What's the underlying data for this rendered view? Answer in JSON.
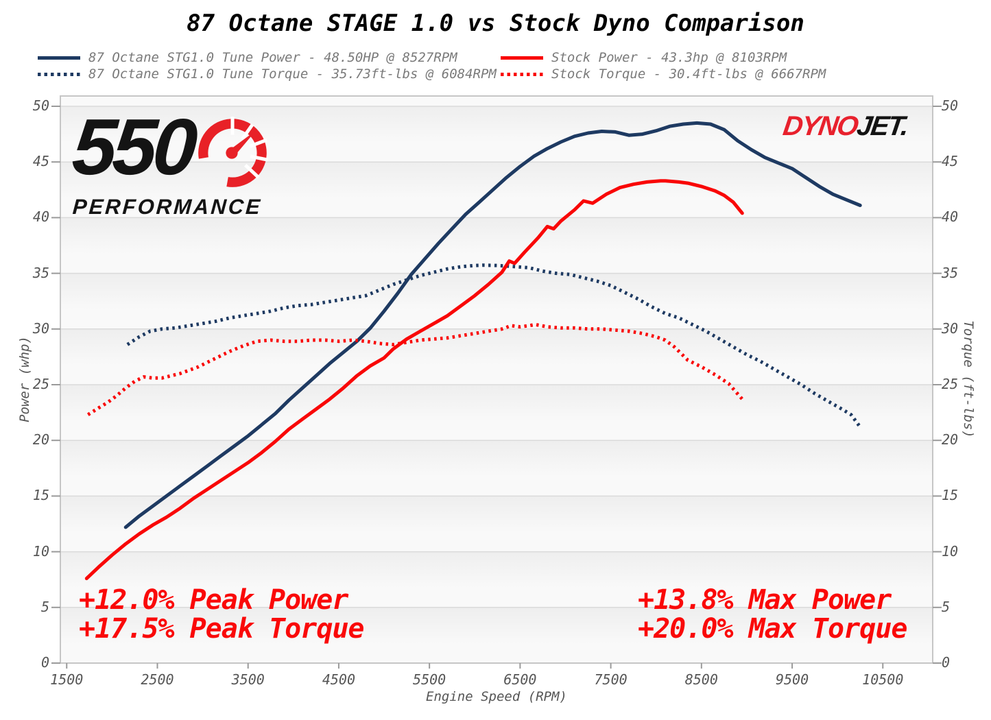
{
  "title": "87 Octane STAGE 1.0 vs Stock Dyno Comparison",
  "logos": {
    "brand_number": "550",
    "brand_name": "PERFORMANCE",
    "gauge_icon_color": "#e82127",
    "dynojet_red": "DYNO",
    "dynojet_black": "JET",
    "dynojet_dot": "."
  },
  "annotations": {
    "color": "#fa0909",
    "left_line1": "+12.0% Peak Power",
    "left_line2": "+17.5% Peak Torque",
    "right_line1": "+13.8% Max Power",
    "right_line2": "+20.0% Max Torque"
  },
  "chart_data": {
    "type": "line",
    "title": "87 Octane STAGE 1.0 vs Stock Dyno Comparison",
    "xlabel": "Engine Speed (RPM)",
    "ylabel_left": "Power (whp)",
    "ylabel_right": "Torque (ft-lbs)",
    "x_ticks": [
      1500,
      2500,
      3500,
      4500,
      5500,
      6500,
      7500,
      8500,
      9500,
      10500
    ],
    "y_ticks": [
      0,
      5,
      10,
      15,
      20,
      25,
      30,
      35,
      40,
      45,
      50
    ],
    "xlim": [
      1430,
      11050
    ],
    "ylim": [
      0,
      50.9
    ],
    "grid": "horizontal-only",
    "legend_position": "top",
    "series": [
      {
        "name": "tune_power",
        "label": "87 Octane STG1.0 Tune Power - 48.50HP @ 8527RPM",
        "color": "#1e3a62",
        "style": "solid",
        "unit": "whp",
        "peak": "48.50HP @ 8527RPM",
        "points": [
          [
            2150,
            12.2
          ],
          [
            2300,
            13.2
          ],
          [
            2450,
            14.1
          ],
          [
            2600,
            15.0
          ],
          [
            2750,
            15.9
          ],
          [
            2900,
            16.8
          ],
          [
            3050,
            17.7
          ],
          [
            3200,
            18.6
          ],
          [
            3350,
            19.5
          ],
          [
            3500,
            20.4
          ],
          [
            3650,
            21.4
          ],
          [
            3800,
            22.4
          ],
          [
            3950,
            23.6
          ],
          [
            4100,
            24.7
          ],
          [
            4250,
            25.8
          ],
          [
            4400,
            26.9
          ],
          [
            4550,
            27.9
          ],
          [
            4700,
            28.9
          ],
          [
            4850,
            30.1
          ],
          [
            5000,
            31.6
          ],
          [
            5150,
            33.2
          ],
          [
            5300,
            34.9
          ],
          [
            5450,
            36.3
          ],
          [
            5600,
            37.7
          ],
          [
            5750,
            39.0
          ],
          [
            5900,
            40.3
          ],
          [
            6050,
            41.4
          ],
          [
            6200,
            42.5
          ],
          [
            6350,
            43.6
          ],
          [
            6500,
            44.6
          ],
          [
            6650,
            45.5
          ],
          [
            6800,
            46.2
          ],
          [
            6950,
            46.8
          ],
          [
            7100,
            47.3
          ],
          [
            7250,
            47.6
          ],
          [
            7400,
            47.75
          ],
          [
            7550,
            47.7
          ],
          [
            7700,
            47.4
          ],
          [
            7850,
            47.5
          ],
          [
            8000,
            47.8
          ],
          [
            8150,
            48.2
          ],
          [
            8300,
            48.4
          ],
          [
            8450,
            48.5
          ],
          [
            8600,
            48.4
          ],
          [
            8750,
            47.9
          ],
          [
            8900,
            46.9
          ],
          [
            9050,
            46.1
          ],
          [
            9200,
            45.4
          ],
          [
            9350,
            44.9
          ],
          [
            9500,
            44.4
          ],
          [
            9650,
            43.6
          ],
          [
            9800,
            42.8
          ],
          [
            9950,
            42.1
          ],
          [
            10100,
            41.6
          ],
          [
            10250,
            41.1
          ]
        ]
      },
      {
        "name": "tune_torque",
        "label": "87 Octane STG1.0 Tune Torque - 35.73ft-lbs @ 6084RPM",
        "color": "#1e3a62",
        "style": "dotted",
        "unit": "ft-lbs",
        "peak": "35.73ft-lbs @ 6084RPM",
        "points": [
          [
            2170,
            28.6
          ],
          [
            2300,
            29.3
          ],
          [
            2420,
            29.8
          ],
          [
            2550,
            30.0
          ],
          [
            2700,
            30.1
          ],
          [
            2850,
            30.3
          ],
          [
            3000,
            30.5
          ],
          [
            3150,
            30.7
          ],
          [
            3300,
            31.0
          ],
          [
            3450,
            31.2
          ],
          [
            3600,
            31.4
          ],
          [
            3750,
            31.6
          ],
          [
            3900,
            31.9
          ],
          [
            4050,
            32.1
          ],
          [
            4200,
            32.2
          ],
          [
            4350,
            32.4
          ],
          [
            4500,
            32.6
          ],
          [
            4650,
            32.8
          ],
          [
            4800,
            33.0
          ],
          [
            4950,
            33.5
          ],
          [
            5100,
            34.0
          ],
          [
            5250,
            34.4
          ],
          [
            5400,
            34.8
          ],
          [
            5550,
            35.1
          ],
          [
            5700,
            35.4
          ],
          [
            5850,
            35.6
          ],
          [
            6000,
            35.7
          ],
          [
            6084,
            35.73
          ],
          [
            6250,
            35.7
          ],
          [
            6450,
            35.6
          ],
          [
            6600,
            35.5
          ],
          [
            6750,
            35.2
          ],
          [
            6900,
            35.0
          ],
          [
            7050,
            34.9
          ],
          [
            7200,
            34.6
          ],
          [
            7350,
            34.3
          ],
          [
            7500,
            33.9
          ],
          [
            7650,
            33.3
          ],
          [
            7800,
            32.7
          ],
          [
            7950,
            32.0
          ],
          [
            8100,
            31.4
          ],
          [
            8250,
            31.0
          ],
          [
            8400,
            30.4
          ],
          [
            8550,
            29.8
          ],
          [
            8700,
            29.1
          ],
          [
            8850,
            28.4
          ],
          [
            9000,
            27.7
          ],
          [
            9150,
            27.1
          ],
          [
            9300,
            26.4
          ],
          [
            9450,
            25.7
          ],
          [
            9600,
            25.0
          ],
          [
            9750,
            24.2
          ],
          [
            9900,
            23.5
          ],
          [
            10050,
            22.8
          ],
          [
            10150,
            22.3
          ],
          [
            10250,
            21.2
          ]
        ]
      },
      {
        "name": "stock_power",
        "label": "Stock Power - 43.3hp @ 8103RPM",
        "color": "#f90606",
        "style": "solid",
        "unit": "hp",
        "peak": "43.3hp @ 8103RPM",
        "points": [
          [
            1720,
            7.6
          ],
          [
            1850,
            8.6
          ],
          [
            2000,
            9.7
          ],
          [
            2150,
            10.7
          ],
          [
            2300,
            11.6
          ],
          [
            2450,
            12.4
          ],
          [
            2600,
            13.1
          ],
          [
            2750,
            13.9
          ],
          [
            2900,
            14.8
          ],
          [
            3050,
            15.6
          ],
          [
            3200,
            16.4
          ],
          [
            3350,
            17.2
          ],
          [
            3500,
            18.0
          ],
          [
            3650,
            18.9
          ],
          [
            3800,
            19.9
          ],
          [
            3950,
            21.0
          ],
          [
            4100,
            21.9
          ],
          [
            4250,
            22.8
          ],
          [
            4400,
            23.7
          ],
          [
            4550,
            24.7
          ],
          [
            4700,
            25.8
          ],
          [
            4850,
            26.7
          ],
          [
            5000,
            27.4
          ],
          [
            5100,
            28.2
          ],
          [
            5250,
            29.1
          ],
          [
            5400,
            29.8
          ],
          [
            5550,
            30.5
          ],
          [
            5700,
            31.2
          ],
          [
            5850,
            32.1
          ],
          [
            6000,
            33.0
          ],
          [
            6150,
            34.0
          ],
          [
            6300,
            35.1
          ],
          [
            6380,
            36.1
          ],
          [
            6440,
            35.9
          ],
          [
            6550,
            36.9
          ],
          [
            6700,
            38.2
          ],
          [
            6800,
            39.2
          ],
          [
            6870,
            39.0
          ],
          [
            6950,
            39.7
          ],
          [
            7100,
            40.7
          ],
          [
            7200,
            41.5
          ],
          [
            7300,
            41.3
          ],
          [
            7450,
            42.1
          ],
          [
            7600,
            42.7
          ],
          [
            7750,
            43.0
          ],
          [
            7900,
            43.2
          ],
          [
            8050,
            43.3
          ],
          [
            8103,
            43.3
          ],
          [
            8250,
            43.2
          ],
          [
            8350,
            43.1
          ],
          [
            8500,
            42.8
          ],
          [
            8650,
            42.4
          ],
          [
            8750,
            42.0
          ],
          [
            8850,
            41.4
          ],
          [
            8950,
            40.4
          ]
        ]
      },
      {
        "name": "stock_torque",
        "label": "Stock Torque - 30.4ft-lbs @ 6667RPM",
        "color": "#f90606",
        "style": "dotted",
        "unit": "ft-lbs",
        "peak": "30.4ft-lbs @ 6667RPM",
        "points": [
          [
            1735,
            22.3
          ],
          [
            1850,
            22.9
          ],
          [
            1950,
            23.4
          ],
          [
            2050,
            24.0
          ],
          [
            2150,
            24.7
          ],
          [
            2250,
            25.3
          ],
          [
            2350,
            25.7
          ],
          [
            2450,
            25.6
          ],
          [
            2550,
            25.6
          ],
          [
            2650,
            25.8
          ],
          [
            2750,
            26.0
          ],
          [
            2850,
            26.3
          ],
          [
            2950,
            26.6
          ],
          [
            3050,
            27.0
          ],
          [
            3150,
            27.4
          ],
          [
            3300,
            28.0
          ],
          [
            3450,
            28.5
          ],
          [
            3600,
            28.9
          ],
          [
            3750,
            29.0
          ],
          [
            3900,
            28.9
          ],
          [
            4050,
            28.9
          ],
          [
            4200,
            29.0
          ],
          [
            4350,
            29.0
          ],
          [
            4500,
            28.9
          ],
          [
            4650,
            29.0
          ],
          [
            4800,
            28.9
          ],
          [
            4950,
            28.7
          ],
          [
            5100,
            28.6
          ],
          [
            5250,
            28.8
          ],
          [
            5400,
            29.0
          ],
          [
            5550,
            29.1
          ],
          [
            5700,
            29.2
          ],
          [
            5850,
            29.4
          ],
          [
            6000,
            29.6
          ],
          [
            6150,
            29.8
          ],
          [
            6300,
            30.0
          ],
          [
            6400,
            30.3
          ],
          [
            6500,
            30.2
          ],
          [
            6600,
            30.3
          ],
          [
            6667,
            30.4
          ],
          [
            6800,
            30.2
          ],
          [
            6950,
            30.1
          ],
          [
            7100,
            30.1
          ],
          [
            7250,
            30.0
          ],
          [
            7400,
            30.0
          ],
          [
            7550,
            29.9
          ],
          [
            7700,
            29.8
          ],
          [
            7850,
            29.6
          ],
          [
            8000,
            29.3
          ],
          [
            8100,
            29.0
          ],
          [
            8200,
            28.4
          ],
          [
            8350,
            27.2
          ],
          [
            8500,
            26.6
          ],
          [
            8650,
            25.9
          ],
          [
            8800,
            25.1
          ],
          [
            8950,
            23.7
          ]
        ]
      }
    ]
  }
}
